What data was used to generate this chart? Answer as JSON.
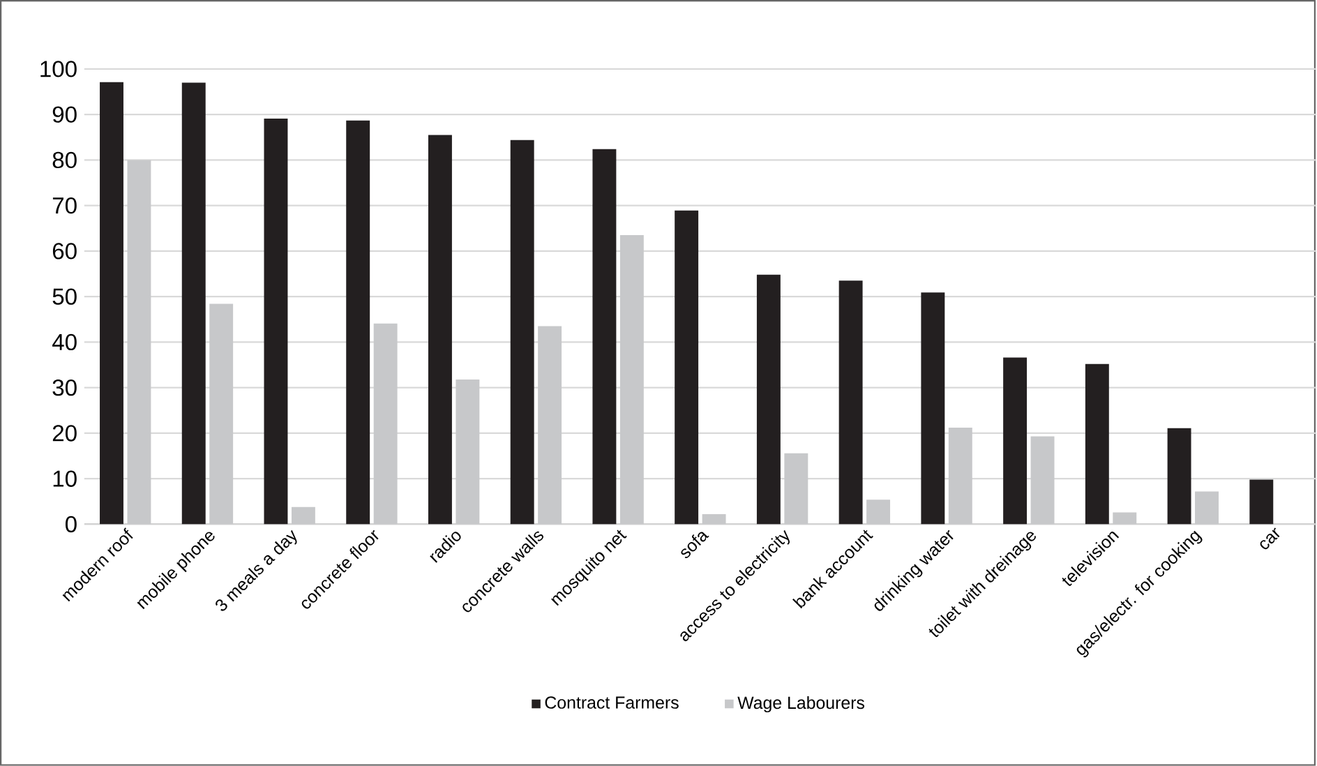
{
  "chart_data": {
    "type": "bar",
    "categories": [
      "modern roof",
      "mobile phone",
      "3 meals a day",
      "concrete floor",
      "radio",
      "concrete walls",
      "mosquito net",
      "sofa",
      "access to electricity",
      "bank account",
      "drinking water",
      "toilet with dreinage",
      "television",
      "gas/electr. for cooking",
      "car"
    ],
    "series": [
      {
        "name": "Contract Farmers",
        "color": "#231f20",
        "values": [
          97.1,
          97,
          89.1,
          88.7,
          85.5,
          84.4,
          82.4,
          68.9,
          54.8,
          53.5,
          50.9,
          36.6,
          35.2,
          21.1,
          9.8
        ]
      },
      {
        "name": "Wage Labourers",
        "color": "#c7c8ca",
        "values": [
          80,
          48.4,
          3.8,
          44.1,
          31.8,
          43.5,
          63.5,
          2.2,
          15.6,
          5.4,
          21.2,
          19.3,
          2.6,
          7.2,
          null
        ]
      }
    ],
    "ylim": [
      0,
      100
    ],
    "yticks": [
      0,
      10,
      20,
      30,
      40,
      50,
      60,
      70,
      80,
      90,
      100
    ],
    "grid": "y",
    "legend": "bottom"
  }
}
